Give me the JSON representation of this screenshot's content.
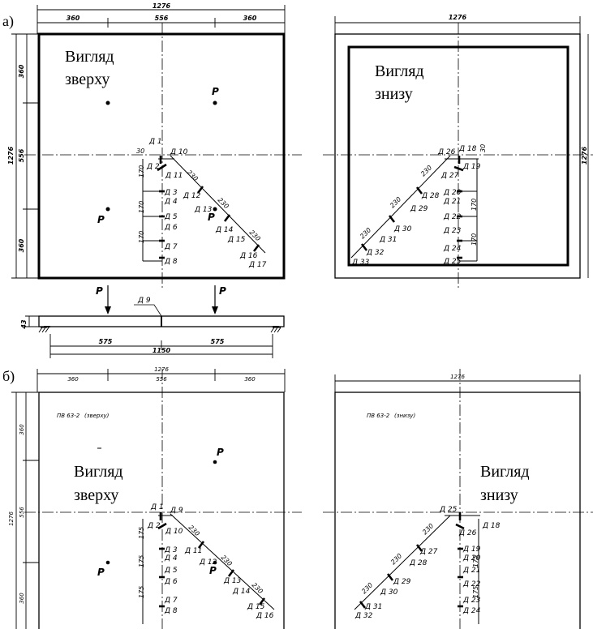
{
  "panel_a": {
    "label": "а)",
    "view_top": {
      "line1": "Вигляд",
      "line2": "зверху"
    },
    "view_bottom": {
      "line1": "Вигляд",
      "line2": "знизу"
    },
    "dim_overall": "1276",
    "dim_left": "360",
    "dim_mid": "556",
    "dim_right": "360",
    "dim_side_total": "1276",
    "dim_side_top": "360",
    "dim_side_mid": "556",
    "dim_side_bot": "360",
    "right_dim_overall": "1276",
    "right_dim_side": "1276",
    "load": "P",
    "gauge_offset_top": "30",
    "gauge_offset_bottom": "30",
    "spacing_v": "170",
    "spacing_d": "230",
    "gauges_top": [
      "Д 1",
      "Д 2",
      "Д 10",
      "Д 11",
      "Д 3",
      "Д 4",
      "Д 5",
      "Д 6",
      "Д 7",
      "Д 8",
      "Д 12",
      "Д 13",
      "Д 14",
      "Д 15",
      "Д 16",
      "Д 17"
    ],
    "gauges_bottom": [
      "Д 26",
      "Д 18",
      "Д 19",
      "Д 27",
      "Д 28",
      "Д 29",
      "Д 20",
      "Д 21",
      "Д 22",
      "Д 23",
      "Д 24",
      "Д 25",
      "Д 30",
      "Д 31",
      "Д 32",
      "Д 33"
    ],
    "section": {
      "gauge": "Д 9",
      "thickness": "43",
      "half_left": "575",
      "half_right": "575",
      "span": "1150"
    }
  },
  "panel_b": {
    "label": "б)",
    "view_top": {
      "line1": "Вигляд",
      "line2": "зверху"
    },
    "view_bottom": {
      "line1": "Вигляд",
      "line2": "знизу"
    },
    "title_top": "ПВ 63-2",
    "title_top_note": "(зверху)",
    "title_bottom": "ПВ 63-2",
    "title_bottom_note": "(знизу)",
    "dim_overall": "1276",
    "dim_left": "360",
    "dim_mid": "556",
    "dim_right": "360",
    "right_dim_overall": "1276",
    "side_total": "1276",
    "side_top": "360",
    "side_mid": "556",
    "side_bot": "360",
    "load": "P",
    "spacing_v": "175",
    "spacing_d": "230",
    "gauges_top": [
      "Д 1",
      "Д 9",
      "Д 2",
      "Д 10",
      "Д 3",
      "Д 4",
      "Д 5",
      "Д 6",
      "Д 7",
      "Д 8",
      "Д 11",
      "Д 12",
      "Д 13",
      "Д 14",
      "Д 15",
      "Д 16"
    ],
    "gauges_bottom": [
      "Д 25",
      "Д 26",
      "Д 18",
      "Д 19",
      "Д 20",
      "Д 21",
      "Д 22",
      "Д 23",
      "Д 24",
      "Д 27",
      "Д 28",
      "Д 29",
      "Д 30",
      "Д 31",
      "Д 32"
    ]
  }
}
